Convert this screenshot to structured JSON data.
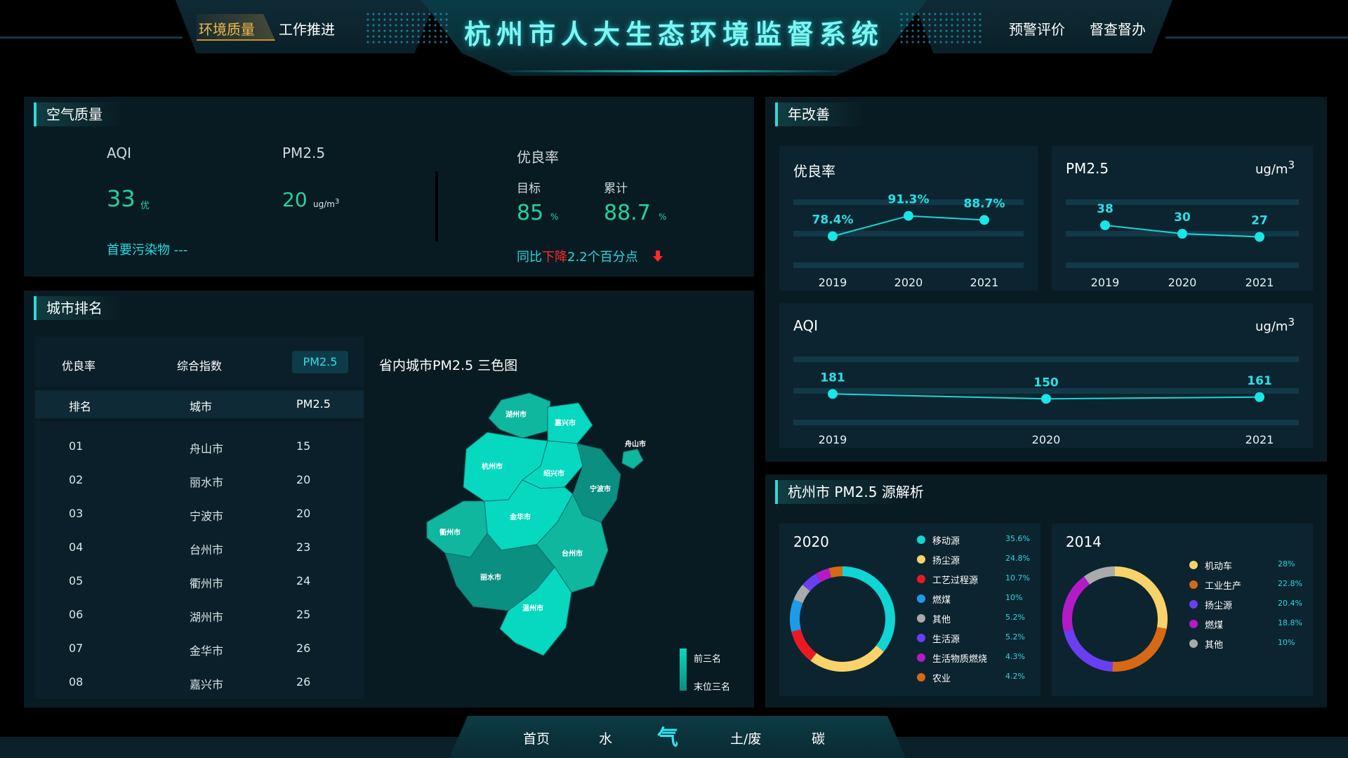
{
  "header": {
    "title": "杭州市人大生态环境监督系统",
    "tabs_left": [
      "环境质量",
      "工作推进"
    ],
    "tabs_right": [
      "预警评价",
      "督查督办"
    ]
  },
  "air": {
    "title": "空气质量",
    "aqi_label": "AQI",
    "aqi_value": "33",
    "aqi_grade": "优",
    "pm_label": "PM2.5",
    "pm_value": "20",
    "pm_unit": "ug/m",
    "pm_unit_sup": "3",
    "primary_pollutant": "首要污染物 ---",
    "good_rate_label": "优良率",
    "target_label": "目标",
    "target_value": "85",
    "target_unit": "%",
    "cum_label": "累计",
    "cum_value": "88.7",
    "cum_unit": "%",
    "yoy_prefix": "同比",
    "yoy_change": "下降",
    "yoy_suffix": "2.2个百分点"
  },
  "ranking": {
    "title": "城市排名",
    "filters": [
      "优良率",
      "综合指数",
      "PM2.5"
    ],
    "active_filter": "PM2.5",
    "columns": [
      "排名",
      "城市",
      "PM2.5"
    ],
    "rows": [
      [
        "01",
        "舟山市",
        "15"
      ],
      [
        "02",
        "丽水市",
        "20"
      ],
      [
        "03",
        "宁波市",
        "20"
      ],
      [
        "04",
        "台州市",
        "23"
      ],
      [
        "05",
        "衢州市",
        "24"
      ],
      [
        "06",
        "湖州市",
        "25"
      ],
      [
        "07",
        "金华市",
        "26"
      ],
      [
        "08",
        "嘉兴市",
        "26"
      ]
    ]
  },
  "map": {
    "title": "省内城市PM2.5 三色图",
    "cities": [
      "湖州市",
      "嘉兴市",
      "舟山市",
      "杭州市",
      "绍兴市",
      "宁波市",
      "衢州市",
      "金华市",
      "台州市",
      "丽水市",
      "温州市"
    ],
    "legend_top": "前三名",
    "legend_bottom": "末位三名",
    "colors": {
      "best": "#06d9c0",
      "mid": "#0fb79f",
      "worst": "#0a8f80"
    }
  },
  "annual": {
    "title": "年改善",
    "good_rate_title": "优良率",
    "pm_title": "PM2.5",
    "pm_unit": "ug/m",
    "pm_unit_sup": "3",
    "aqi_title": "AQI",
    "aqi_unit": "ug/m",
    "aqi_unit_sup": "3"
  },
  "chart_data": [
    {
      "type": "line",
      "title": "优良率",
      "x": [
        "2019",
        "2020",
        "2021"
      ],
      "values": [
        78.4,
        91.3,
        88.7
      ],
      "labels": [
        "78.4%",
        "91.3%",
        "88.7%"
      ],
      "ylim": [
        60,
        100
      ]
    },
    {
      "type": "line",
      "title": "PM2.5",
      "x": [
        "2019",
        "2020",
        "2021"
      ],
      "values": [
        38,
        30,
        27
      ],
      "labels": [
        "38",
        "30",
        "27"
      ],
      "ylim": [
        0,
        60
      ]
    },
    {
      "type": "line",
      "title": "AQI",
      "x": [
        "2019",
        "2020",
        "2021"
      ],
      "values": [
        181,
        150,
        161
      ],
      "labels": [
        "181",
        "150",
        "161"
      ],
      "ylim": [
        0,
        400
      ]
    },
    {
      "type": "pie",
      "title": "2020",
      "categories": [
        "移动源",
        "扬尘源",
        "工艺过程源",
        "燃煤",
        "其他",
        "生活源",
        "生活物质燃烧",
        "农业"
      ],
      "values": [
        35.6,
        24.8,
        10.7,
        10,
        5.2,
        5.2,
        4.3,
        4.2
      ],
      "labels": [
        "35.6%",
        "24.8%",
        "10.7%",
        "10%",
        "5.2%",
        "5.2%",
        "4.3%",
        "4.2%"
      ],
      "colors": [
        "#10d5d5",
        "#f7d36a",
        "#e81b23",
        "#1e9be8",
        "#a9aaab",
        "#6a3ff2",
        "#b51ac8",
        "#d76815"
      ]
    },
    {
      "type": "pie",
      "title": "2014",
      "categories": [
        "机动车",
        "工业生产",
        "扬尘源",
        "燃煤",
        "其他"
      ],
      "values": [
        28,
        22.8,
        20.4,
        18.8,
        10
      ],
      "labels": [
        "28%",
        "22.8%",
        "20.4%",
        "18.8%",
        "10%"
      ],
      "colors": [
        "#f7d36a",
        "#d76815",
        "#6a3ff2",
        "#b51ac8",
        "#a9aaab"
      ]
    }
  ],
  "source": {
    "title": "杭州市 PM2.5  源解析"
  },
  "footer": {
    "items": [
      "首页",
      "水",
      "气",
      "土/废",
      "碳"
    ],
    "active": "气"
  }
}
